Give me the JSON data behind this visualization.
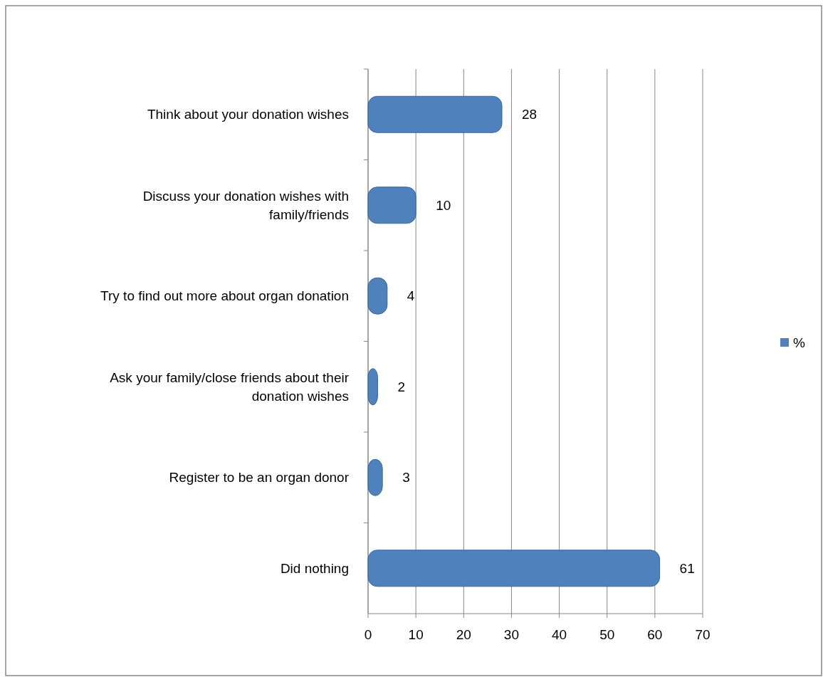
{
  "chart_data": {
    "type": "bar",
    "orientation": "horizontal",
    "categories": [
      "Think about your donation wishes",
      "Discuss your donation wishes with family/friends",
      "Try to find out more about organ donation",
      "Ask your family/close friends about their donation wishes",
      "Register to be an organ donor",
      "Did nothing"
    ],
    "series": [
      {
        "name": "%",
        "color": "#4f81bd",
        "values": [
          28,
          10,
          4,
          2,
          3,
          61
        ]
      }
    ],
    "xlim": [
      0,
      70
    ],
    "xticks": [
      0,
      10,
      20,
      30,
      40,
      50,
      60,
      70
    ],
    "grid": "x",
    "legend": "right",
    "data_labels": true
  }
}
